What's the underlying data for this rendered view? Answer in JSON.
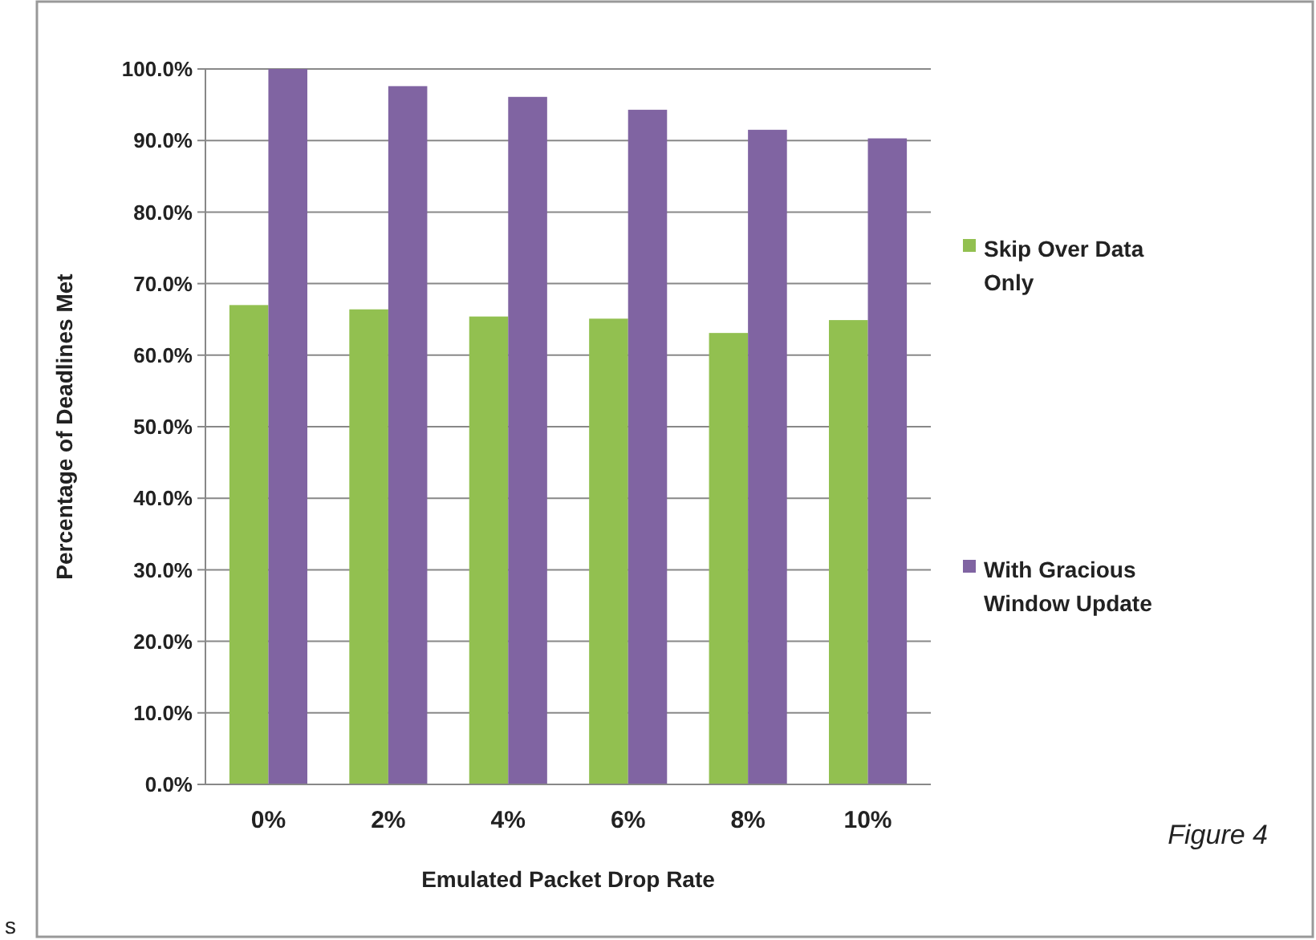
{
  "chart_data": {
    "type": "bar",
    "xlabel": "Emulated Packet Drop Rate",
    "ylabel": "Percentage of Deadlines Met",
    "categories": [
      "0%",
      "2%",
      "4%",
      "6%",
      "8%",
      "10%"
    ],
    "series": [
      {
        "name": "Skip Over Data Only",
        "color": "#92c050",
        "values": [
          67.0,
          66.4,
          65.4,
          65.1,
          63.1,
          64.9
        ]
      },
      {
        "name": "With Gracious Window Update",
        "color": "#8064a2",
        "values": [
          100.0,
          97.6,
          96.1,
          94.3,
          91.5,
          90.3
        ]
      }
    ],
    "ylim": [
      0,
      100
    ],
    "yticks": [
      {
        "value": 0,
        "label": "0.0%"
      },
      {
        "value": 10,
        "label": "10.0%"
      },
      {
        "value": 20,
        "label": "20.0%"
      },
      {
        "value": 30,
        "label": "30.0%"
      },
      {
        "value": 40,
        "label": "40.0%"
      },
      {
        "value": 50,
        "label": "50.0%"
      },
      {
        "value": 60,
        "label": "60.0%"
      },
      {
        "value": 70,
        "label": "70.0%"
      },
      {
        "value": 80,
        "label": "80.0%"
      },
      {
        "value": 90,
        "label": "90.0%"
      },
      {
        "value": 100,
        "label": "100.0%"
      }
    ],
    "grid": "y",
    "legend": "right",
    "annotations": [
      "Figure 4",
      "s"
    ]
  }
}
